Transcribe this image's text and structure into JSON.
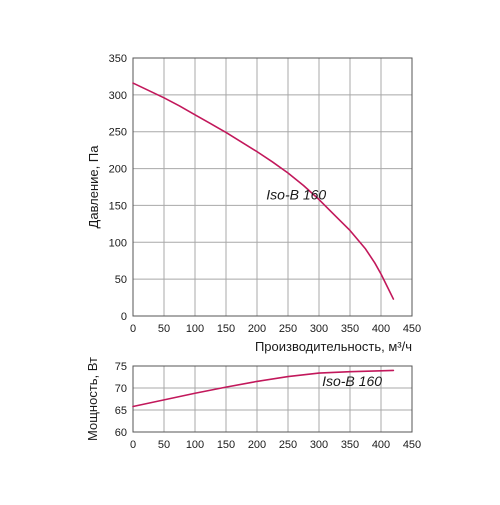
{
  "colors": {
    "curve": "#c2185b",
    "grid": "#a8a8a8",
    "text": "#1a1a1a"
  },
  "chart_data": [
    {
      "type": "line",
      "xlabel": "Производительность, м³/ч",
      "ylabel": "Давление, Па",
      "xlim": [
        0,
        450
      ],
      "ylim": [
        0,
        350
      ],
      "xticks": [
        "0",
        "50",
        "100",
        "150",
        "200",
        "250",
        "300",
        "350",
        "400",
        "450"
      ],
      "yticks": [
        "0",
        "50",
        "100",
        "150",
        "200",
        "250",
        "300",
        "350"
      ],
      "grid": true,
      "annotation": {
        "text": "Iso-B 160",
        "x": 215,
        "y": 158
      },
      "series": [
        {
          "x": [
            0,
            25,
            50,
            75,
            100,
            125,
            150,
            175,
            200,
            225,
            250,
            275,
            300,
            325,
            350,
            375,
            390,
            400,
            410,
            420
          ],
          "values": [
            316,
            306,
            296,
            285,
            273,
            261,
            249,
            236,
            223,
            209,
            194,
            177,
            158,
            137,
            116,
            91,
            72,
            57,
            40,
            23
          ]
        }
      ]
    },
    {
      "type": "line",
      "xlabel": "",
      "ylabel": "Мощность, Вт",
      "xlim": [
        0,
        450
      ],
      "ylim": [
        60,
        75
      ],
      "xticks": [
        "0",
        "50",
        "100",
        "150",
        "200",
        "250",
        "300",
        "350",
        "400",
        "450"
      ],
      "yticks": [
        "60",
        "65",
        "70",
        "75"
      ],
      "grid": true,
      "annotation": {
        "text": "Iso-B 160",
        "x": 305,
        "y": 70.5
      },
      "series": [
        {
          "x": [
            0,
            50,
            100,
            150,
            200,
            250,
            300,
            350,
            400,
            420
          ],
          "values": [
            65.8,
            67.3,
            68.8,
            70.2,
            71.5,
            72.6,
            73.4,
            73.7,
            73.9,
            74.0
          ]
        }
      ]
    }
  ]
}
